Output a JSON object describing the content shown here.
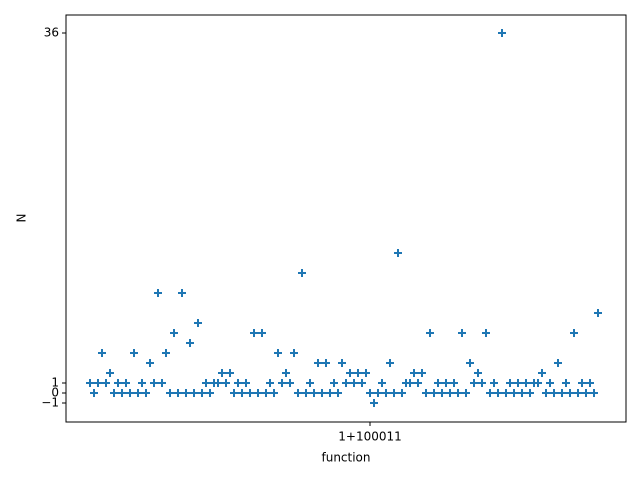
{
  "chart_data": {
    "type": "scatter",
    "marker": "plus",
    "color": "#1f77b4",
    "x_label": "function",
    "y_label": "N",
    "x": [
      99942,
      99943,
      99944,
      99945,
      99946,
      99947,
      99948,
      99949,
      99950,
      99951,
      99952,
      99953,
      99954,
      99955,
      99956,
      99957,
      99958,
      99959,
      99960,
      99961,
      99962,
      99963,
      99964,
      99965,
      99966,
      99967,
      99968,
      99969,
      99970,
      99971,
      99972,
      99973,
      99974,
      99975,
      99976,
      99977,
      99978,
      99979,
      99980,
      99981,
      99982,
      99983,
      99984,
      99985,
      99986,
      99987,
      99988,
      99989,
      99990,
      99991,
      99992,
      99993,
      99994,
      99995,
      99996,
      99997,
      99998,
      99999,
      100000,
      100001,
      100002,
      100003,
      100004,
      100005,
      100006,
      100007,
      100008,
      100009,
      100010,
      100011,
      100012,
      100013,
      100014,
      100015,
      100016,
      100017,
      100018,
      100019,
      100020,
      100021,
      100022,
      100023,
      100024,
      100025,
      100026,
      100027,
      100028,
      100029,
      100030,
      100031,
      100032,
      100033,
      100034,
      100035,
      100036,
      100037,
      100038,
      100039,
      100040,
      100041,
      100042,
      100043,
      100044,
      100045,
      100046,
      100047,
      100048,
      100049,
      100050,
      100051,
      100052,
      100053,
      100054,
      100055,
      100056,
      100057,
      100058,
      100059,
      100060,
      100061,
      100062,
      100063,
      100064,
      100065,
      100066,
      100067,
      100068,
      100069
    ],
    "values": [
      1,
      0,
      1,
      4,
      1,
      2,
      0,
      1,
      0,
      1,
      0,
      4,
      0,
      1,
      0,
      3,
      1,
      10,
      1,
      4,
      0,
      6,
      0,
      10,
      0,
      5,
      0,
      7,
      0,
      1,
      0,
      1,
      1,
      2,
      1,
      2,
      0,
      1,
      0,
      1,
      0,
      6,
      0,
      6,
      0,
      1,
      0,
      4,
      1,
      2,
      1,
      4,
      0,
      12,
      0,
      1,
      0,
      3,
      0,
      3,
      0,
      1,
      0,
      3,
      1,
      2,
      1,
      2,
      1,
      2,
      0,
      -1,
      0,
      1,
      0,
      3,
      0,
      14,
      0,
      1,
      1,
      2,
      1,
      2,
      0,
      6,
      0,
      1,
      0,
      1,
      0,
      1,
      0,
      6,
      0,
      3,
      1,
      2,
      1,
      6,
      0,
      1,
      0,
      36,
      0,
      1,
      0,
      1,
      0,
      1,
      0,
      1,
      1,
      2,
      0,
      1,
      0,
      3,
      0,
      1,
      0,
      6,
      0,
      1,
      0,
      1,
      0,
      8
    ],
    "xlim": [
      99936,
      100076
    ],
    "xticks": [
      {
        "value": 100012,
        "label": "1+100011"
      }
    ],
    "ylim": [
      -2.9,
      37.8
    ],
    "yticks": [
      {
        "value": -1,
        "label": "−1"
      },
      0,
      1,
      36
    ]
  }
}
